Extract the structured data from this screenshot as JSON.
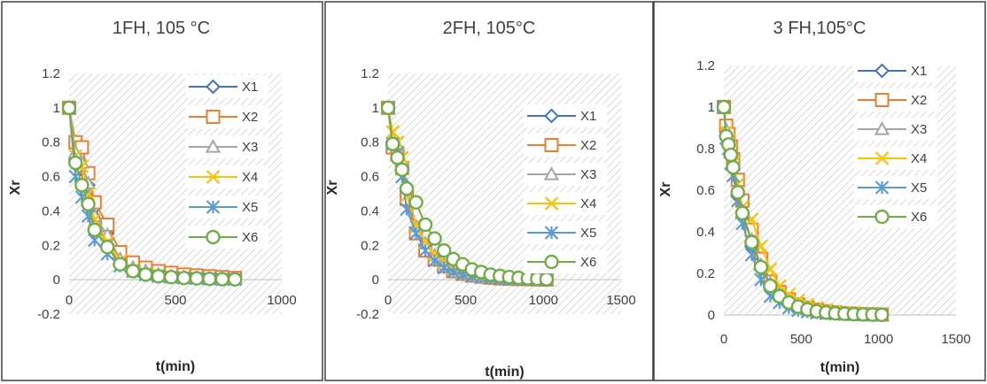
{
  "chart_data": [
    {
      "type": "line",
      "title": "1FH, 105 °C",
      "xlabel": "t(min)",
      "ylabel": "Xr",
      "xlim": [
        0,
        1000
      ],
      "ylim": [
        -0.2,
        1.2
      ],
      "xticks": [
        "0",
        "500",
        "1000"
      ],
      "yticks": [
        "-0.2",
        "0",
        "0.2",
        "0.4",
        "0.6",
        "0.8",
        "1",
        "1.2"
      ],
      "grid": true,
      "legend": "top-right",
      "series": [
        {
          "name": "X1",
          "marker": "diamond",
          "color": "#4472C4",
          "x": [
            0,
            30,
            60,
            90,
            120,
            180,
            240,
            300,
            360,
            420,
            480,
            540,
            600,
            660,
            720,
            780
          ],
          "y": [
            1,
            0.7,
            0.64,
            0.55,
            0.42,
            0.27,
            0.12,
            0.07,
            0.045,
            0.03,
            0.02,
            0.015,
            0.01,
            0.008,
            0.005,
            0.003
          ]
        },
        {
          "name": "X2",
          "marker": "square",
          "color": "#ED7D31",
          "x": [
            0,
            30,
            60,
            90,
            120,
            180,
            240,
            300,
            360,
            420,
            480,
            540,
            600,
            660,
            720,
            780
          ],
          "y": [
            1,
            0.8,
            0.77,
            0.62,
            0.45,
            0.32,
            0.16,
            0.1,
            0.07,
            0.05,
            0.04,
            0.03,
            0.025,
            0.02,
            0.015,
            0.01
          ]
        },
        {
          "name": "X3",
          "marker": "triangle",
          "color": "#A5A5A5",
          "x": [
            0,
            30,
            60,
            90,
            120,
            180,
            240,
            300,
            360,
            420,
            480,
            540,
            600,
            660,
            720,
            780
          ],
          "y": [
            1,
            0.74,
            0.68,
            0.56,
            0.37,
            0.26,
            0.12,
            0.07,
            0.05,
            0.03,
            0.02,
            0.015,
            0.01,
            0.008,
            0.005,
            0.003
          ]
        },
        {
          "name": "X4",
          "marker": "x",
          "color": "#FFC000",
          "x": [
            0,
            30,
            60,
            90,
            120,
            180,
            240,
            300,
            360,
            420,
            480,
            540,
            600,
            660,
            720,
            780
          ],
          "y": [
            1,
            0.72,
            0.66,
            0.5,
            0.35,
            0.22,
            0.11,
            0.06,
            0.04,
            0.03,
            0.02,
            0.015,
            0.01,
            0.008,
            0.005,
            0.003
          ]
        },
        {
          "name": "X5",
          "marker": "asterisk",
          "color": "#5B9BD5",
          "x": [
            0,
            30,
            60,
            90,
            120,
            180,
            240,
            300,
            360,
            420,
            480,
            540,
            600,
            660,
            720,
            780
          ],
          "y": [
            1,
            0.6,
            0.48,
            0.37,
            0.23,
            0.15,
            0.08,
            0.05,
            0.03,
            0.02,
            0.015,
            0.01,
            0.008,
            0.005,
            0.003,
            0.002
          ]
        },
        {
          "name": "X6",
          "marker": "circle",
          "color": "#70AD47",
          "x": [
            0,
            30,
            60,
            90,
            120,
            180,
            240,
            300,
            360,
            420,
            480,
            540,
            600,
            660,
            720,
            780
          ],
          "y": [
            1,
            0.68,
            0.55,
            0.44,
            0.29,
            0.19,
            0.09,
            0.05,
            0.03,
            0.02,
            0.015,
            0.01,
            0.008,
            0.005,
            0.003,
            0.002
          ]
        }
      ]
    },
    {
      "type": "line",
      "title": "2FH, 105°C",
      "xlabel": "t(min)",
      "ylabel": "Xr",
      "xlim": [
        0,
        1500
      ],
      "ylim": [
        -0.2,
        1.2
      ],
      "xticks": [
        "0",
        "500",
        "1000",
        "1500"
      ],
      "yticks": [
        "-0.2",
        "0",
        "0.2",
        "0.4",
        "0.6",
        "0.8",
        "1",
        "1.2"
      ],
      "grid": true,
      "legend": "right",
      "series": [
        {
          "name": "X1",
          "marker": "diamond",
          "color": "#4472C4",
          "x": [
            0,
            30,
            60,
            90,
            120,
            180,
            240,
            300,
            360,
            420,
            480,
            540,
            600,
            660,
            720,
            780,
            840,
            900,
            960,
            1020
          ],
          "y": [
            1,
            0.8,
            0.76,
            0.67,
            0.51,
            0.29,
            0.19,
            0.13,
            0.08,
            0.05,
            0.035,
            0.025,
            0.018,
            0.012,
            0.008,
            0.006,
            0.004,
            0.003,
            0.002,
            0.001
          ]
        },
        {
          "name": "X2",
          "marker": "square",
          "color": "#ED7D31",
          "x": [
            0,
            30,
            60,
            90,
            120,
            180,
            240,
            300,
            360,
            420,
            480,
            540,
            600,
            660,
            720,
            780,
            840,
            900,
            960,
            1020
          ],
          "y": [
            1,
            0.77,
            0.73,
            0.65,
            0.47,
            0.27,
            0.17,
            0.12,
            0.08,
            0.05,
            0.035,
            0.025,
            0.018,
            0.012,
            0.008,
            0.006,
            0.004,
            0.003,
            0.002,
            0.001
          ]
        },
        {
          "name": "X3",
          "marker": "triangle",
          "color": "#A5A5A5",
          "x": [
            0,
            30,
            60,
            90,
            120,
            180,
            240,
            300,
            360,
            420,
            480,
            540,
            600,
            660,
            720,
            780,
            840,
            900,
            960,
            1020
          ],
          "y": [
            1,
            0.82,
            0.78,
            0.69,
            0.55,
            0.31,
            0.21,
            0.14,
            0.09,
            0.06,
            0.04,
            0.03,
            0.02,
            0.014,
            0.01,
            0.007,
            0.005,
            0.003,
            0.002,
            0.001
          ]
        },
        {
          "name": "X4",
          "marker": "x",
          "color": "#FFC000",
          "x": [
            0,
            30,
            60,
            90,
            120,
            180,
            240,
            300,
            360,
            420,
            480,
            540,
            600,
            660,
            720,
            780,
            840,
            900,
            960,
            1020
          ],
          "y": [
            1,
            0.86,
            0.8,
            0.71,
            0.49,
            0.32,
            0.22,
            0.15,
            0.1,
            0.06,
            0.045,
            0.032,
            0.022,
            0.015,
            0.01,
            0.007,
            0.005,
            0.003,
            0.002,
            0.001
          ]
        },
        {
          "name": "X5",
          "marker": "asterisk",
          "color": "#5B9BD5",
          "x": [
            0,
            30,
            60,
            90,
            120,
            180,
            240,
            300,
            360,
            420,
            480,
            540,
            600,
            660,
            720,
            780,
            840,
            900,
            960,
            1020
          ],
          "y": [
            1,
            0.79,
            0.74,
            0.6,
            0.41,
            0.27,
            0.17,
            0.11,
            0.07,
            0.045,
            0.03,
            0.02,
            0.015,
            0.01,
            0.007,
            0.005,
            0.003,
            0.002,
            0.001,
            0.001
          ]
        },
        {
          "name": "X6",
          "marker": "circle",
          "color": "#70AD47",
          "x": [
            0,
            30,
            60,
            90,
            120,
            180,
            240,
            300,
            360,
            420,
            480,
            540,
            600,
            660,
            720,
            780,
            840,
            900,
            960,
            1020
          ],
          "y": [
            1,
            0.79,
            0.71,
            0.64,
            0.53,
            0.45,
            0.32,
            0.24,
            0.17,
            0.12,
            0.09,
            0.06,
            0.045,
            0.03,
            0.022,
            0.016,
            0.011,
            0.008,
            0.005,
            0.003
          ]
        }
      ]
    },
    {
      "type": "line",
      "title": "3 FH,105°C",
      "xlabel": "t(min)",
      "ylabel": "Xr",
      "xlim": [
        0,
        1500
      ],
      "ylim": [
        0,
        1.2
      ],
      "xticks": [
        "0",
        "500",
        "1000",
        "1500"
      ],
      "yticks": [
        "0",
        "0.2",
        "0.4",
        "0.6",
        "0.8",
        "1",
        "1.2"
      ],
      "grid": true,
      "legend": "right",
      "series": [
        {
          "name": "X1",
          "marker": "diamond",
          "color": "#4472C4",
          "x": [
            0,
            15,
            30,
            45,
            60,
            90,
            120,
            180,
            240,
            300,
            360,
            420,
            480,
            540,
            600,
            660,
            720,
            780,
            840,
            900,
            960,
            1020
          ],
          "y": [
            1,
            0.88,
            0.84,
            0.76,
            0.7,
            0.57,
            0.47,
            0.33,
            0.22,
            0.14,
            0.1,
            0.065,
            0.045,
            0.03,
            0.02,
            0.015,
            0.01,
            0.007,
            0.005,
            0.003,
            0.002,
            0.001
          ]
        },
        {
          "name": "X2",
          "marker": "square",
          "color": "#ED7D31",
          "x": [
            0,
            15,
            30,
            45,
            60,
            90,
            120,
            180,
            240,
            300,
            360,
            420,
            480,
            540,
            600,
            660,
            720,
            780,
            840,
            900,
            960,
            1020
          ],
          "y": [
            1,
            0.91,
            0.87,
            0.81,
            0.75,
            0.65,
            0.55,
            0.41,
            0.27,
            0.16,
            0.11,
            0.075,
            0.05,
            0.035,
            0.025,
            0.018,
            0.012,
            0.008,
            0.006,
            0.004,
            0.003,
            0.002
          ]
        },
        {
          "name": "X3",
          "marker": "triangle",
          "color": "#A5A5A5",
          "x": [
            0,
            15,
            30,
            45,
            60,
            90,
            120,
            180,
            240,
            300,
            360,
            420,
            480,
            540,
            600,
            660,
            720,
            780,
            840,
            900,
            960,
            1020
          ],
          "y": [
            1,
            0.89,
            0.85,
            0.78,
            0.72,
            0.6,
            0.49,
            0.36,
            0.24,
            0.15,
            0.1,
            0.07,
            0.048,
            0.033,
            0.023,
            0.016,
            0.011,
            0.008,
            0.005,
            0.003,
            0.002,
            0.001
          ]
        },
        {
          "name": "X4",
          "marker": "x",
          "color": "#FFC000",
          "x": [
            0,
            15,
            30,
            45,
            60,
            90,
            120,
            180,
            240,
            300,
            360,
            420,
            480,
            540,
            600,
            660,
            720,
            780,
            840,
            900,
            960,
            1020
          ],
          "y": [
            1,
            0.88,
            0.84,
            0.79,
            0.73,
            0.63,
            0.52,
            0.46,
            0.33,
            0.22,
            0.14,
            0.1,
            0.07,
            0.05,
            0.035,
            0.025,
            0.018,
            0.012,
            0.008,
            0.005,
            0.003,
            0.002
          ]
        },
        {
          "name": "X5",
          "marker": "asterisk",
          "color": "#5B9BD5",
          "x": [
            0,
            15,
            30,
            45,
            60,
            90,
            120,
            180,
            240,
            300,
            360,
            420,
            480,
            540,
            600,
            660,
            720,
            780,
            840,
            900,
            960,
            1020
          ],
          "y": [
            1,
            0.85,
            0.8,
            0.73,
            0.67,
            0.55,
            0.44,
            0.29,
            0.17,
            0.09,
            0.06,
            0.035,
            0.022,
            0.015,
            0.01,
            0.007,
            0.005,
            0.003,
            0.002,
            0.001,
            0.001,
            0.001
          ]
        },
        {
          "name": "X6",
          "marker": "circle",
          "color": "#70AD47",
          "x": [
            0,
            15,
            30,
            45,
            60,
            90,
            120,
            180,
            240,
            300,
            360,
            420,
            480,
            540,
            600,
            660,
            720,
            780,
            840,
            900,
            960,
            1020
          ],
          "y": [
            1,
            0.86,
            0.82,
            0.77,
            0.71,
            0.59,
            0.49,
            0.35,
            0.23,
            0.14,
            0.09,
            0.06,
            0.04,
            0.027,
            0.018,
            0.012,
            0.008,
            0.006,
            0.004,
            0.003,
            0.002,
            0.001
          ]
        }
      ]
    }
  ]
}
